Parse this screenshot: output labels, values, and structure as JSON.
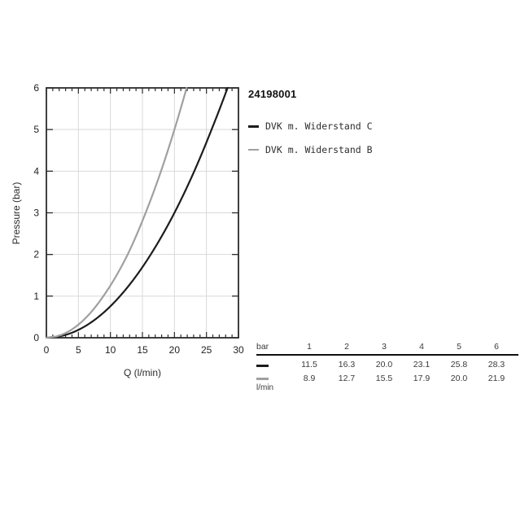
{
  "title": "24198001",
  "legend": {
    "items": [
      {
        "label": "DVK m. Widerstand C",
        "color": "#1c1c1c"
      },
      {
        "label": "DVK m. Widerstand B",
        "color": "#a0a0a0"
      }
    ]
  },
  "chart_data": {
    "type": "line",
    "title": "24198001",
    "xlabel": "Q (l/min)",
    "ylabel": "Pressure (bar)",
    "xlim": [
      0,
      30
    ],
    "ylim": [
      0,
      6
    ],
    "x_ticks": [
      0,
      5,
      10,
      15,
      20,
      25,
      30
    ],
    "x_minor_step": 1,
    "y_ticks": [
      0,
      1,
      2,
      3,
      4,
      5,
      6
    ],
    "grid": true,
    "legend_position": "outside-top-right",
    "series": [
      {
        "name": "DVK m. Widerstand C",
        "color": "#1c1c1c",
        "pressures_bar": [
          0,
          1,
          2,
          3,
          4,
          5,
          6
        ],
        "flows_lmin": [
          0,
          11.5,
          16.3,
          20.0,
          23.1,
          25.8,
          28.3
        ]
      },
      {
        "name": "DVK m. Widerstand B",
        "color": "#a0a0a0",
        "pressures_bar": [
          0,
          1,
          2,
          3,
          4,
          5,
          6
        ],
        "flows_lmin": [
          0,
          8.9,
          12.7,
          15.5,
          17.9,
          20.0,
          21.9
        ]
      }
    ]
  },
  "table": {
    "header_label": "bar",
    "columns": [
      "1",
      "2",
      "3",
      "4",
      "5",
      "6"
    ],
    "rows": [
      {
        "symbol_color": "#1c1c1c",
        "values": [
          "11.5",
          "16.3",
          "20.0",
          "23.1",
          "25.8",
          "28.3"
        ]
      },
      {
        "symbol_color": "#a0a0a0",
        "values": [
          "8.9",
          "12.7",
          "15.5",
          "17.9",
          "20.0",
          "21.9"
        ],
        "unit": "l/min"
      }
    ]
  },
  "colors": {
    "background": "#ffffff",
    "frame": "#2b2b2b",
    "grid": "#d9d9d9",
    "tick_label": "#1f1f1f"
  }
}
